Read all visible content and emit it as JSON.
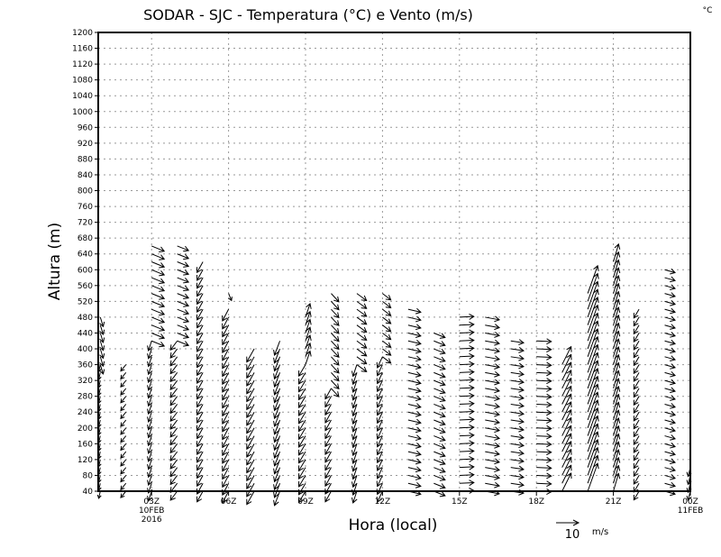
{
  "chart_data": {
    "type": "vector",
    "title": "SODAR - SJC - Temperatura (°C) e Vento (m/s)",
    "corner_label": "°C",
    "xlabel": "Hora (local)",
    "ylabel": "Altura (m)",
    "ylim": [
      40,
      1200
    ],
    "xlim_hours": [
      0.92,
      24
    ],
    "grid": true,
    "yticks": [
      40,
      80,
      120,
      160,
      200,
      240,
      280,
      320,
      360,
      400,
      440,
      480,
      520,
      560,
      600,
      640,
      680,
      720,
      760,
      800,
      840,
      880,
      920,
      960,
      1000,
      1040,
      1080,
      1120,
      1160,
      1200
    ],
    "xticks": [
      {
        "hour": 3,
        "label": "03Z",
        "sub1": "10FEB",
        "sub2": "2016"
      },
      {
        "hour": 6,
        "label": "06Z"
      },
      {
        "hour": 9,
        "label": "09Z"
      },
      {
        "hour": 12,
        "label": "12Z"
      },
      {
        "hour": 15,
        "label": "15Z"
      },
      {
        "hour": 18,
        "label": "18Z"
      },
      {
        "hour": 21,
        "label": "21Z"
      },
      {
        "hour": 24,
        "label": "00Z",
        "sub1": "11FEB"
      }
    ],
    "reference_vector": {
      "speed": 10,
      "label": "10",
      "unit": "m/s"
    },
    "level_step_m": 20,
    "columns": [
      {
        "hour": 1,
        "segments": [
          [
            40,
            360,
            -1,
            -3
          ],
          [
            360,
            480,
            1,
            -4
          ]
        ]
      },
      {
        "hour": 2,
        "segments": [
          [
            40,
            360,
            -2,
            -3
          ]
        ]
      },
      {
        "hour": 3,
        "segments": [
          [
            40,
            420,
            -2,
            -4
          ],
          [
            420,
            660,
            5,
            -2
          ]
        ]
      },
      {
        "hour": 4,
        "segments": [
          [
            40,
            420,
            -3,
            -4
          ],
          [
            420,
            660,
            5,
            -2
          ]
        ]
      },
      {
        "hour": 5,
        "segments": [
          [
            40,
            620,
            -2,
            -5
          ]
        ]
      },
      {
        "hour": 6,
        "segments": [
          [
            40,
            500,
            -3,
            -5
          ],
          [
            540,
            540,
            1,
            -3
          ]
        ]
      },
      {
        "hour": 7,
        "segments": [
          [
            40,
            400,
            -3,
            -6
          ]
        ]
      },
      {
        "hour": 8,
        "segments": [
          [
            40,
            420,
            -3,
            -6
          ]
        ]
      },
      {
        "hour": 9,
        "segments": [
          [
            40,
            360,
            -3,
            -5
          ],
          [
            360,
            490,
            2,
            6
          ]
        ]
      },
      {
        "hour": 10,
        "segments": [
          [
            40,
            300,
            -2,
            -5
          ],
          [
            300,
            540,
            4,
            -4
          ]
        ]
      },
      {
        "hour": 11,
        "segments": [
          [
            40,
            360,
            -2,
            -5
          ],
          [
            360,
            540,
            4,
            -3
          ]
        ]
      },
      {
        "hour": 12,
        "segments": [
          [
            40,
            380,
            -2,
            -5
          ],
          [
            380,
            540,
            4,
            -3
          ]
        ]
      },
      {
        "hour": 13,
        "segments": [
          [
            40,
            500,
            5,
            -1
          ]
        ]
      },
      {
        "hour": 14,
        "segments": [
          [
            40,
            440,
            5,
            -2
          ]
        ]
      },
      {
        "hour": 15,
        "segments": [
          [
            40,
            480,
            7,
            0
          ]
        ]
      },
      {
        "hour": 16,
        "segments": [
          [
            40,
            480,
            6,
            -1
          ]
        ]
      },
      {
        "hour": 17,
        "segments": [
          [
            40,
            420,
            6,
            -1
          ]
        ]
      },
      {
        "hour": 18,
        "segments": [
          [
            40,
            420,
            6,
            0
          ]
        ]
      },
      {
        "hour": 19,
        "segments": [
          [
            40,
            360,
            4,
            8
          ]
        ]
      },
      {
        "hour": 20,
        "segments": [
          [
            40,
            540,
            5,
            12
          ]
        ]
      },
      {
        "hour": 21,
        "segments": [
          [
            40,
            620,
            2,
            8
          ]
        ]
      },
      {
        "hour": 22,
        "segments": [
          [
            40,
            500,
            -2,
            -4
          ]
        ]
      },
      {
        "hour": 23,
        "segments": [
          [
            40,
            610,
            4,
            -1
          ]
        ]
      },
      {
        "hour": 24,
        "segments": [
          [
            40,
            100,
            -1,
            -4
          ]
        ]
      }
    ]
  }
}
